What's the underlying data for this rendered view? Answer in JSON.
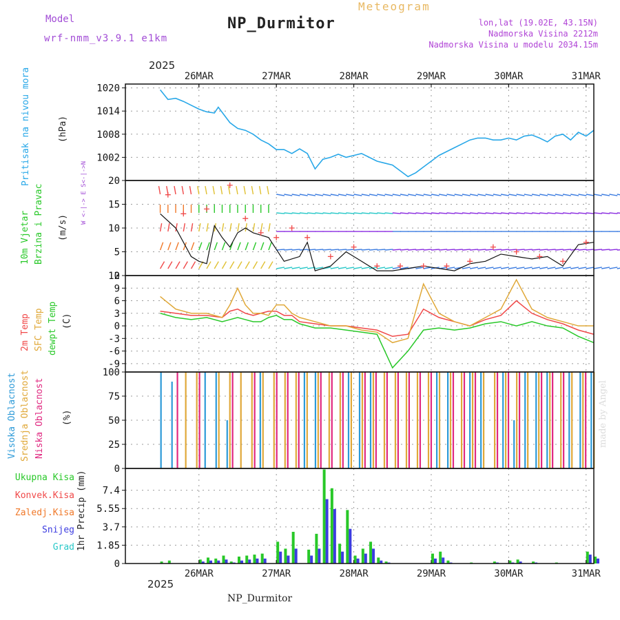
{
  "header": {
    "title": "NP_Durmitor",
    "model_label": "Model",
    "model_value": "wrf-nmm_v3.9.1 e1km",
    "meteogram_label": "Meteogram",
    "lonlat": "lon,lat (19.02E, 43.15N)",
    "altitude": "Nadmorska Visina 2212m",
    "model_altitude": "Nadmorska Visina u modelu 2034.15m"
  },
  "footer": {
    "station": "NP_Durmitor",
    "credit": "made by Angel"
  },
  "axis": {
    "year": "2025",
    "dates": [
      "26MAR",
      "27MAR",
      "28MAR",
      "29MAR",
      "30MAR",
      "31MAR"
    ]
  },
  "colors": {
    "pressure": "#27a7e8",
    "temp2m": "#f04848",
    "sfc": "#e0a838",
    "dew": "#28c828",
    "high_cloud": "#2c9ad8",
    "mid_cloud": "#e0a838",
    "low_cloud": "#e02880",
    "rain_total": "#28c828",
    "convective": "#f04848",
    "freezing": "#f07828",
    "snow": "#3c3ce0",
    "graupel": "#28c8c8"
  },
  "chart_data": [
    {
      "type": "line",
      "panel": "pressure",
      "ylabel": "Pritisak na nivou mora",
      "unit": "(hPa)",
      "yticks": [
        1002,
        1008,
        1014,
        1020
      ],
      "ylim": [
        996,
        1021
      ],
      "x": [
        0,
        0.1,
        0.2,
        0.3,
        0.4,
        0.5,
        0.6,
        0.7,
        0.75,
        0.9,
        1.0,
        1.1,
        1.2,
        1.3,
        1.4,
        1.5,
        1.6,
        1.7,
        1.8,
        1.9,
        2.0,
        2.1,
        2.2,
        2.3,
        2.4,
        2.5,
        2.6,
        2.7,
        2.8,
        2.9,
        3.0,
        3.1,
        3.2,
        3.3,
        3.4,
        3.5,
        3.6,
        3.7,
        3.8,
        3.9,
        4.0,
        4.1,
        4.2,
        4.3,
        4.4,
        4.5,
        4.6,
        4.7,
        4.8,
        4.9,
        5.0,
        5.1,
        5.2,
        5.3,
        5.4,
        5.5,
        5.6
      ],
      "values": [
        1019.5,
        1017.0,
        1017.3,
        1016.5,
        1015.5,
        1014.5,
        1013.8,
        1013.5,
        1015.0,
        1011.0,
        1009.5,
        1009.0,
        1008.0,
        1006.5,
        1005.5,
        1004.0,
        1004.0,
        1003.0,
        1004.2,
        1003.0,
        999.0,
        1001.5,
        1002.0,
        1002.8,
        1002.0,
        1002.5,
        1003.0,
        1002.0,
        1001.0,
        1000.5,
        1000.0,
        998.5,
        997.0,
        998.0,
        999.5,
        1001.0,
        1002.5,
        1003.5,
        1004.5,
        1005.5,
        1006.5,
        1007.0,
        1007.0,
        1006.5,
        1006.5,
        1007.0,
        1006.5,
        1007.5,
        1007.8,
        1007.0,
        1006.0,
        1007.5,
        1008.0,
        1006.5,
        1008.5,
        1007.5,
        1009.0
      ]
    },
    {
      "type": "scatter",
      "panel": "wind",
      "ylabel": "10m Vjetar",
      "ylabel2": "Brzina i Pravac",
      "unit": "(m/s)",
      "compass": "W <-|-> E  S<-|->N",
      "yticks": [
        0,
        5,
        10,
        15,
        20
      ],
      "ylim": [
        0,
        20
      ],
      "x": [
        0,
        0.2,
        0.4,
        0.5,
        0.6,
        0.7,
        0.8,
        0.9,
        1.0,
        1.1,
        1.2,
        1.4,
        1.6,
        1.8,
        1.9,
        2.0,
        2.1,
        2.2,
        2.4,
        2.6,
        2.8,
        3.0,
        3.2,
        3.4,
        3.6,
        3.8,
        4.0,
        4.2,
        4.4,
        4.6,
        4.8,
        5.0,
        5.2,
        5.4,
        5.6
      ],
      "values": [
        13,
        10,
        4,
        3,
        2.5,
        10.5,
        8,
        6,
        9,
        10,
        9,
        8,
        3,
        4,
        7,
        1,
        1.5,
        2,
        5,
        3,
        1,
        1,
        1.5,
        2,
        1.5,
        1,
        2.5,
        3,
        4.5,
        4,
        3.5,
        4,
        2,
        6.5,
        7
      ],
      "gusts_x": [
        0.1,
        0.3,
        0.6,
        0.9,
        1.1,
        1.3,
        1.5,
        1.7,
        1.9,
        2.2,
        2.5,
        2.8,
        3.1,
        3.4,
        3.7,
        4.0,
        4.3,
        4.6,
        4.9,
        5.2,
        5.5
      ],
      "gusts": [
        17,
        13,
        14,
        19,
        12,
        9,
        8,
        10,
        8,
        4,
        6,
        2,
        2,
        2,
        2,
        3,
        6,
        5,
        4,
        3,
        7
      ]
    },
    {
      "type": "line",
      "panel": "temperature",
      "ylabel": "2m Temp",
      "ylabel2": "SFC Temp",
      "ylabel3": "dewpt Temp",
      "unit": "(C)",
      "yticks": [
        -9,
        -6,
        -3,
        0,
        3,
        6,
        9,
        12
      ],
      "ylim": [
        -11,
        12
      ],
      "x": [
        0,
        0.2,
        0.4,
        0.6,
        0.8,
        0.9,
        1.0,
        1.1,
        1.2,
        1.3,
        1.4,
        1.5,
        1.6,
        1.7,
        1.8,
        2.0,
        2.2,
        2.4,
        2.6,
        2.8,
        3.0,
        3.2,
        3.4,
        3.6,
        3.8,
        4.0,
        4.2,
        4.4,
        4.6,
        4.8,
        5.0,
        5.2,
        5.4,
        5.6
      ],
      "series": [
        {
          "name": "2m Temp",
          "color": "#f04848",
          "values": [
            3.5,
            3,
            2.5,
            2.5,
            2,
            3.5,
            4,
            3,
            2.5,
            3,
            3.5,
            3.5,
            2.5,
            2.5,
            1,
            0.5,
            0,
            0,
            -0.5,
            -1,
            -2.5,
            -2,
            4,
            2,
            1,
            0,
            1.5,
            2.5,
            6,
            3,
            1.5,
            0.5,
            -1,
            -2
          ]
        },
        {
          "name": "SFC Temp",
          "color": "#e0a838",
          "values": [
            7,
            4,
            3,
            3,
            2,
            5,
            9,
            5,
            3,
            3,
            2.5,
            5,
            5,
            3,
            2,
            1,
            0,
            0,
            -1,
            -1.5,
            -4,
            -3,
            10,
            3,
            1,
            0,
            2,
            4,
            11,
            4,
            2,
            1,
            0,
            0
          ]
        },
        {
          "name": "dewpt Temp",
          "color": "#28c828",
          "values": [
            3,
            2,
            1.5,
            2,
            1,
            1.5,
            2,
            1.5,
            1,
            1,
            2,
            2.5,
            1.5,
            1.5,
            0.5,
            -0.5,
            -0.5,
            -1,
            -1.5,
            -2,
            -10,
            -6,
            -1,
            -0.5,
            -1,
            -0.5,
            0.5,
            1,
            0,
            1,
            0,
            -0.5,
            -2.5,
            -4
          ]
        }
      ]
    },
    {
      "type": "bar",
      "panel": "clouds",
      "ylabel": "Visoka Oblacnost",
      "ylabel2": "Srednja Oblacnost",
      "ylabel3": "Niska Oblacnost",
      "unit": "(%)",
      "yticks": [
        0,
        25,
        50,
        75,
        100
      ],
      "ylim": [
        0,
        100
      ],
      "series": [
        {
          "name": "Visoka Oblacnost",
          "color": "#2c9ad8",
          "values": [
            100,
            90,
            0,
            0,
            100,
            100,
            50,
            0,
            0,
            100,
            0,
            0,
            0,
            100,
            100,
            0,
            0,
            100,
            100,
            100,
            0,
            0,
            0,
            0,
            0,
            100,
            100,
            0,
            100,
            100,
            0,
            100,
            50,
            100,
            100,
            100,
            0,
            100,
            100,
            100
          ]
        },
        {
          "name": "Srednja Oblacnost",
          "color": "#e0a838",
          "values": [
            0,
            0,
            100,
            100,
            0,
            100,
            100,
            100,
            100,
            100,
            100,
            100,
            100,
            100,
            100,
            100,
            100,
            100,
            100,
            100,
            100,
            100,
            100,
            100,
            100,
            100,
            100,
            100,
            100,
            100,
            100,
            100,
            100,
            100,
            100,
            100,
            100,
            100,
            100,
            100
          ]
        },
        {
          "name": "Niska Oblacnost",
          "color": "#e02880",
          "values": [
            0,
            100,
            0,
            100,
            0,
            0,
            100,
            0,
            100,
            0,
            100,
            100,
            100,
            0,
            100,
            100,
            100,
            0,
            100,
            100,
            100,
            100,
            100,
            100,
            100,
            0,
            100,
            100,
            100,
            0,
            100,
            100,
            100,
            0,
            100,
            100,
            100,
            0,
            100,
            0
          ]
        }
      ]
    },
    {
      "type": "bar",
      "panel": "precipitation",
      "ylabel": "1hr Precip (mm)",
      "legend": [
        "Ukupna Kisa",
        "Konvek.Kisa",
        "Zaledj.Kisa",
        "Snijeg",
        "Grad"
      ],
      "yticks": [
        0,
        1.85,
        3.7,
        5.55,
        7.4
      ],
      "ylim": [
        0,
        9.6
      ],
      "x": [
        0,
        0.1,
        0.5,
        0.6,
        0.7,
        0.8,
        0.9,
        1.0,
        1.1,
        1.2,
        1.3,
        1.5,
        1.6,
        1.7,
        1.9,
        2.0,
        2.1,
        2.2,
        2.3,
        2.4,
        2.5,
        2.6,
        2.7,
        2.8,
        2.9,
        3.0,
        3.1,
        3.2,
        3.5,
        3.6,
        3.7,
        4.0,
        4.3,
        4.5,
        4.6,
        4.8,
        5.0,
        5.1,
        5.5,
        5.6
      ],
      "series": [
        {
          "name": "Ukupna Kisa",
          "color": "#28c828",
          "values": [
            0.2,
            0.3,
            0.4,
            0.6,
            0.5,
            0.8,
            0.2,
            0.7,
            0.8,
            0.9,
            1.0,
            2.2,
            1.5,
            3.2,
            1.4,
            3.0,
            9.5,
            7.6,
            2.0,
            5.4,
            0.8,
            1.5,
            2.2,
            0.6,
            0.2,
            0,
            0,
            0,
            1.0,
            1.2,
            0.3,
            0.1,
            0.2,
            0.3,
            0.4,
            0.2,
            0,
            0.1,
            1.2,
            0.7
          ]
        },
        {
          "name": "Snijeg",
          "color": "#3c3ce0",
          "values": [
            0,
            0,
            0.2,
            0.3,
            0.3,
            0.4,
            0.1,
            0.3,
            0.4,
            0.5,
            0.5,
            1.2,
            0.8,
            1.5,
            0.8,
            1.5,
            6.5,
            5.5,
            1.2,
            3.5,
            0.5,
            1.0,
            1.5,
            0.3,
            0.1,
            0,
            0,
            0,
            0.5,
            0.6,
            0.1,
            0,
            0.1,
            0.1,
            0.2,
            0.1,
            0,
            0,
            0.9,
            0.5
          ]
        }
      ]
    }
  ]
}
